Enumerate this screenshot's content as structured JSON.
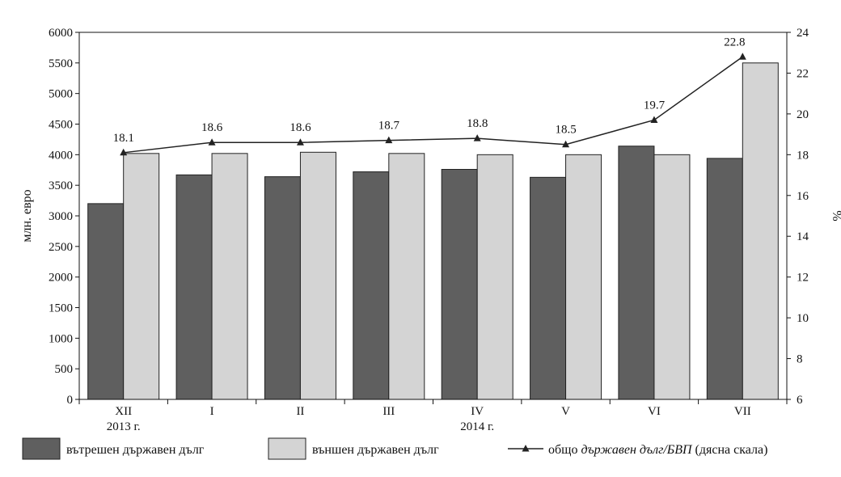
{
  "chart_data": {
    "type": "bar",
    "title": "",
    "categories": [
      "XII",
      "I",
      "II",
      "III",
      "IV",
      "V",
      "VI",
      "VII"
    ],
    "category_sublabels": [
      {
        "text": "2013 г.",
        "under": 0
      },
      {
        "text": "2014 г.",
        "under": 4
      }
    ],
    "ylabel": "млн. евро",
    "y2label": "%",
    "ylim": [
      0,
      6000
    ],
    "y_ticks": [
      0,
      500,
      1000,
      1500,
      2000,
      2500,
      3000,
      3500,
      4000,
      4500,
      5000,
      5500,
      6000
    ],
    "y2lim": [
      6,
      24
    ],
    "y2_ticks": [
      6,
      8,
      10,
      12,
      14,
      16,
      18,
      20,
      22,
      24
    ],
    "grid": false,
    "legend_position": "bottom",
    "series": [
      {
        "name": "вътрешен държавен дълг",
        "kind": "bar",
        "axis": "left",
        "color": "#5f5f5f",
        "values": [
          3200,
          3670,
          3640,
          3720,
          3760,
          3630,
          4140,
          3940
        ]
      },
      {
        "name": "външен държавен дълг",
        "kind": "bar",
        "axis": "left",
        "color": "#d4d4d4",
        "values": [
          4020,
          4020,
          4040,
          4020,
          4000,
          4000,
          4000,
          5500
        ]
      },
      {
        "name": "общо",
        "name_italic": "държавен дълг/БВП",
        "name_suffix": "(дясна скала)",
        "kind": "line",
        "axis": "right",
        "color": "#222222",
        "values": [
          18.1,
          18.6,
          18.6,
          18.7,
          18.8,
          18.5,
          19.7,
          22.8
        ],
        "labels": [
          "18.1",
          "18.6",
          "18.6",
          "18.7",
          "18.8",
          "18.5",
          "19.7",
          "22.8"
        ]
      }
    ]
  }
}
